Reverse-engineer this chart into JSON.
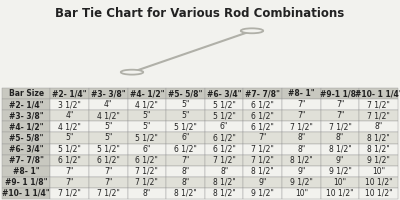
{
  "title": "Bar Tie Chart for Various Rod Combinations",
  "col_headers": [
    "Bar Size",
    "#2- 1/4\"",
    "#3- 3/8\"",
    "#4- 1/2\"",
    "#5- 5/8\"",
    "#6- 3/4\"",
    "#7- 7/8\"",
    "#8- 1\"",
    "#9-1 1/8\"",
    "#10- 1 1/4\""
  ],
  "rows": [
    [
      "#2- 1/4\"",
      "3 1/2\"",
      "4\"",
      "4 1/2\"",
      "5\"",
      "5 1/2\"",
      "6 1/2\"",
      "7\"",
      "7\"",
      "7 1/2\""
    ],
    [
      "#3- 3/8\"",
      "4\"",
      "4 1/2\"",
      "5\"",
      "5\"",
      "5 1/2\"",
      "6 1/2\"",
      "7\"",
      "7\"",
      "7 1/2\""
    ],
    [
      "#4- 1/2\"",
      "4 1/2\"",
      "5\"",
      "5\"",
      "5 1/2\"",
      "6\"",
      "6 1/2\"",
      "7 1/2\"",
      "7 1/2\"",
      "8\""
    ],
    [
      "#5- 5/8\"",
      "5\"",
      "5\"",
      "5 1/2\"",
      "6\"",
      "6 1/2\"",
      "7\"",
      "8\"",
      "8\"",
      "8 1/2\""
    ],
    [
      "#6- 3/4\"",
      "5 1/2\"",
      "5 1/2\"",
      "6\"",
      "6 1/2\"",
      "6 1/2\"",
      "7 1/2\"",
      "8\"",
      "8 1/2\"",
      "8 1/2\""
    ],
    [
      "#7- 7/8\"",
      "6 1/2\"",
      "6 1/2\"",
      "6 1/2\"",
      "7\"",
      "7 1/2\"",
      "7 1/2\"",
      "8 1/2\"",
      "9\"",
      "9 1/2\""
    ],
    [
      "#8- 1\"",
      "7\"",
      "7\"",
      "7 1/2\"",
      "8\"",
      "8\"",
      "8 1/2\"",
      "9\"",
      "9 1/2\"",
      "10\""
    ],
    [
      "#9- 1 1/8\"",
      "7\"",
      "7\"",
      "7 1/2\"",
      "8\"",
      "8 1/2\"",
      "9\"",
      "9 1/2\"",
      "10\"",
      "10 1/2\""
    ],
    [
      "#10- 1 1/4\"",
      "7 1/2\"",
      "7 1/2\"",
      "8\"",
      "8 1/2\"",
      "8 1/2\"",
      "9 1/2\"",
      "10\"",
      "10 1/2\"",
      "10 1/2\""
    ]
  ],
  "bg_color": "#f2f2ee",
  "header_bg": "#c8c8c0",
  "row_label_bg": "#c8c8c0",
  "cell_bg_even": "#f2f2ee",
  "cell_bg_odd": "#e0e0d8",
  "border_color": "#999999",
  "title_fontsize": 8.5,
  "cell_fontsize": 5.5,
  "header_fontsize": 5.5,
  "tie_color": "#b0b0a8",
  "tie_lw": 1.5
}
